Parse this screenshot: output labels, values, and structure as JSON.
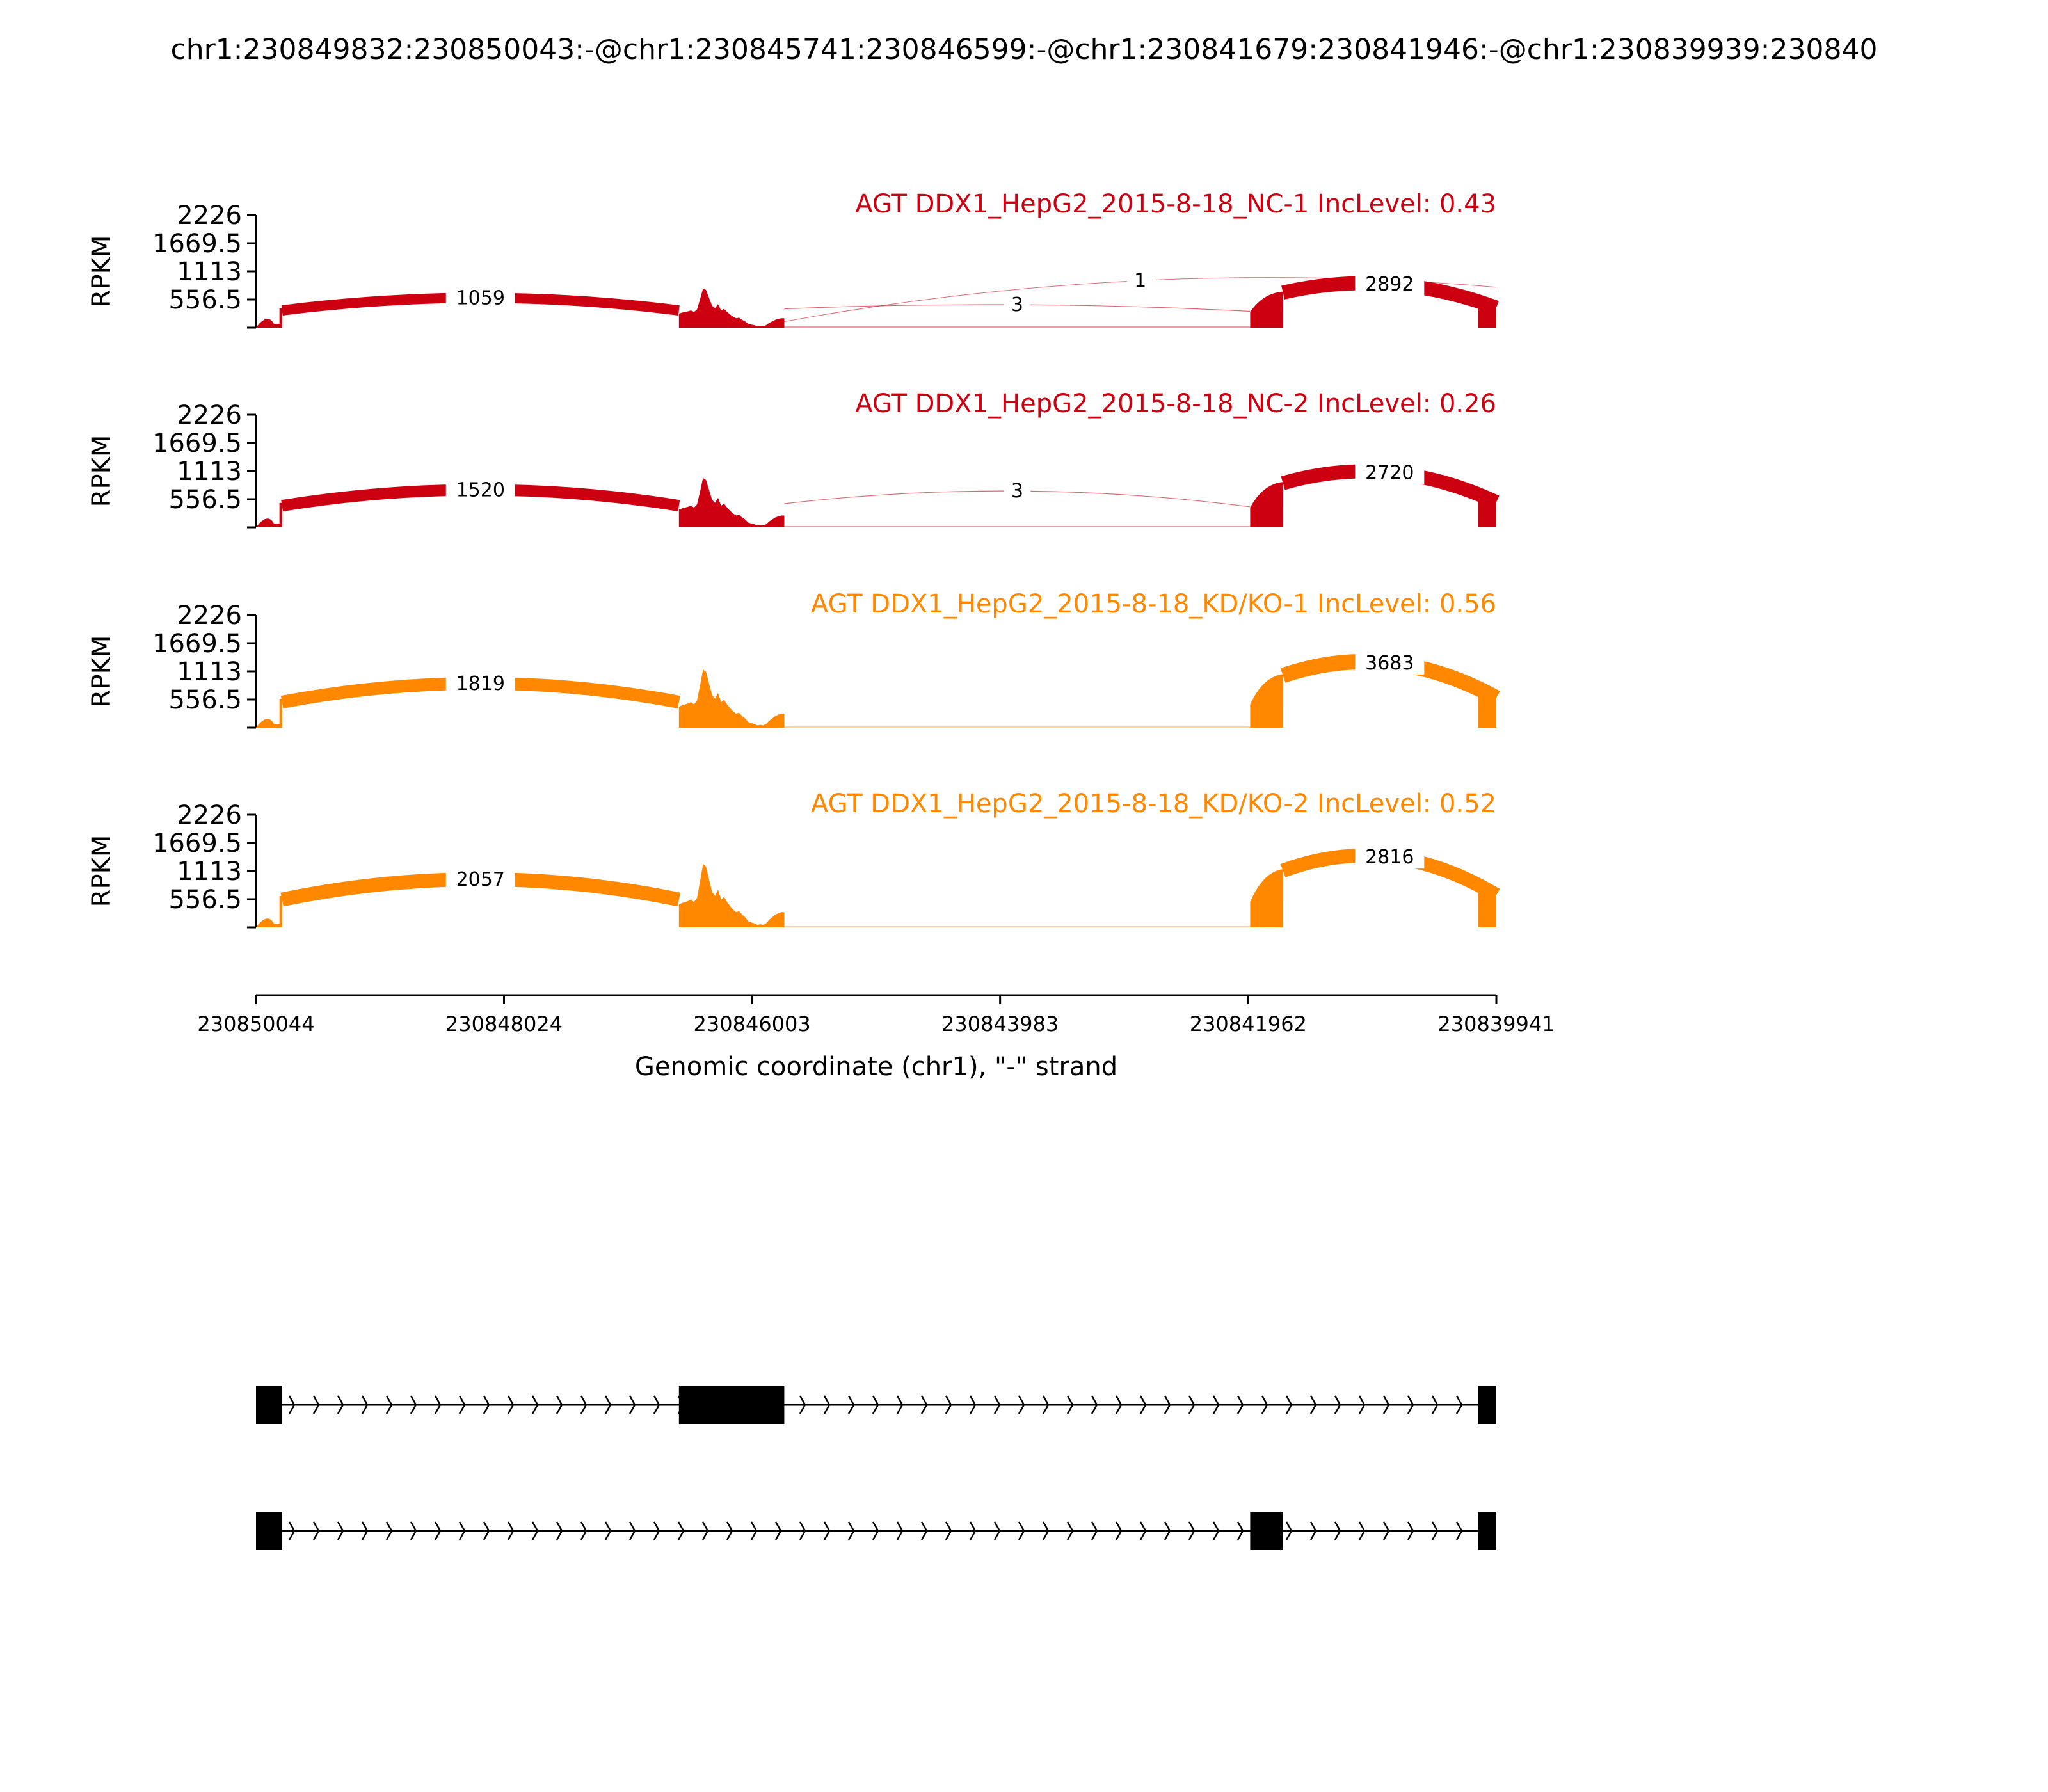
{
  "chart_data": {
    "type": "sashimi",
    "title": "chr1:230849832:230850043:-@chr1:230845741:230846599:-@chr1:230841679:230841946:-@chr1:230839939:230840",
    "ylabel": "RPKM",
    "xlabel": "Genomic coordinate (chr1), \"-\" strand",
    "ylim": [
      0,
      2226
    ],
    "y_ticks": [
      "2226",
      "1669.5",
      "1113",
      "556.5"
    ],
    "x_tick_values": [
      230850044,
      230848024,
      230846003,
      230843983,
      230841962,
      230839941
    ],
    "x_tick_labels": [
      "230850044",
      "230848024",
      "230846003",
      "230843983",
      "230841962",
      "230839941"
    ],
    "x_range": [
      230850044,
      230839941
    ],
    "exons": [
      {
        "start": 230850044,
        "end": 230849832,
        "name": "exon1"
      },
      {
        "start": 230846599,
        "end": 230845741,
        "name": "exon2"
      },
      {
        "start": 230841946,
        "end": 230841679,
        "name": "exon3"
      },
      {
        "start": 230840090,
        "end": 230839941,
        "name": "exon4"
      }
    ],
    "tracks": [
      {
        "label": "AGT DDX1_HepG2_2015-8-18_NC-1 IncLevel: 0.43",
        "color": "#cc0011",
        "scale": 0.62,
        "junctions": [
          {
            "from": 230849832,
            "to": 230846599,
            "count": "1059",
            "width": 16,
            "side": "up"
          },
          {
            "from": 230845741,
            "to": 230841946,
            "count": "3",
            "width": 1.2,
            "side": "down"
          },
          {
            "from": 230845741,
            "to": 230839941,
            "count": "1",
            "width": 1,
            "side": "up"
          },
          {
            "from": 230841679,
            "to": 230839941,
            "count": "2892",
            "width": 22,
            "side": "up"
          }
        ]
      },
      {
        "label": "AGT DDX1_HepG2_2015-8-18_NC-2 IncLevel: 0.26",
        "color": "#cc0011",
        "scale": 0.78,
        "junctions": [
          {
            "from": 230849832,
            "to": 230846599,
            "count": "1520",
            "width": 18,
            "side": "up"
          },
          {
            "from": 230845741,
            "to": 230841946,
            "count": "3",
            "width": 1.2,
            "side": "up"
          },
          {
            "from": 230841679,
            "to": 230839941,
            "count": "2720",
            "width": 22,
            "side": "up"
          }
        ]
      },
      {
        "label": "AGT DDX1_HepG2_2015-8-18_KD/KO-1 IncLevel: 0.56",
        "color": "#ff8800",
        "scale": 0.92,
        "junctions": [
          {
            "from": 230849832,
            "to": 230846599,
            "count": "1819",
            "width": 20,
            "side": "up"
          },
          {
            "from": 230841679,
            "to": 230839941,
            "count": "3683",
            "width": 24,
            "side": "up"
          }
        ]
      },
      {
        "label": "AGT DDX1_HepG2_2015-8-18_KD/KO-2 IncLevel: 0.52",
        "color": "#ff8800",
        "scale": 1.0,
        "junctions": [
          {
            "from": 230849832,
            "to": 230846599,
            "count": "2057",
            "width": 22,
            "side": "up"
          },
          {
            "from": 230841679,
            "to": 230839941,
            "count": "2816",
            "width": 22,
            "side": "up"
          }
        ]
      }
    ],
    "isoforms": [
      {
        "name": "isoform-exon2-inclusion",
        "exons": [
          0,
          1,
          3
        ]
      },
      {
        "name": "isoform-exon3-inclusion",
        "exons": [
          0,
          2,
          3
        ]
      }
    ]
  }
}
